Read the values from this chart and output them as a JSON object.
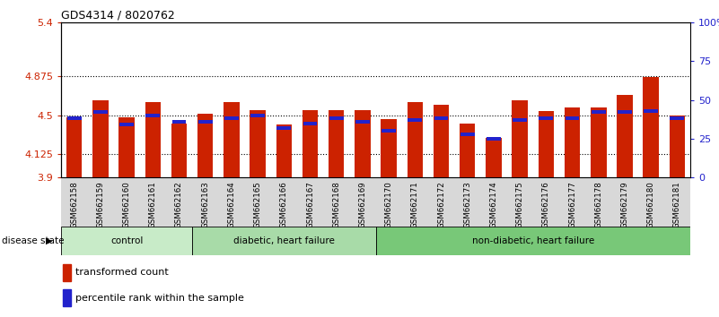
{
  "title": "GDS4314 / 8020762",
  "samples": [
    "GSM662158",
    "GSM662159",
    "GSM662160",
    "GSM662161",
    "GSM662162",
    "GSM662163",
    "GSM662164",
    "GSM662165",
    "GSM662166",
    "GSM662167",
    "GSM662168",
    "GSM662169",
    "GSM662170",
    "GSM662171",
    "GSM662172",
    "GSM662173",
    "GSM662174",
    "GSM662175",
    "GSM662176",
    "GSM662177",
    "GSM662178",
    "GSM662179",
    "GSM662180",
    "GSM662181"
  ],
  "red_values": [
    4.48,
    4.65,
    4.48,
    4.63,
    4.42,
    4.52,
    4.63,
    4.55,
    4.41,
    4.55,
    4.55,
    4.55,
    4.46,
    4.63,
    4.6,
    4.42,
    4.28,
    4.65,
    4.54,
    4.58,
    4.58,
    4.7,
    4.87,
    4.5
  ],
  "blue_values": [
    38,
    42,
    34,
    40,
    36,
    36,
    38,
    40,
    32,
    35,
    38,
    36,
    30,
    37,
    38,
    28,
    25,
    37,
    38,
    38,
    42,
    42,
    43,
    38
  ],
  "group_data": [
    {
      "label": "control",
      "start": 0,
      "end": 5,
      "color": "#c8ebc8"
    },
    {
      "label": "diabetic, heart failure",
      "start": 5,
      "end": 12,
      "color": "#a8dba8"
    },
    {
      "label": "non-diabetic, heart failure",
      "start": 12,
      "end": 24,
      "color": "#78c878"
    }
  ],
  "ymin": 3.9,
  "ymax": 5.4,
  "yticks": [
    3.9,
    4.125,
    4.5,
    4.875,
    5.4
  ],
  "ytick_labels": [
    "3.9",
    "4.125",
    "4.5",
    "4.875",
    "5.4"
  ],
  "right_yticks": [
    0,
    25,
    50,
    75,
    100
  ],
  "right_ytick_labels": [
    "0",
    "25",
    "50",
    "75",
    "100%"
  ],
  "dotted_lines": [
    4.125,
    4.5,
    4.875
  ],
  "bar_color": "#cc2200",
  "blue_color": "#2222cc",
  "xtick_bg": "#d8d8d8"
}
